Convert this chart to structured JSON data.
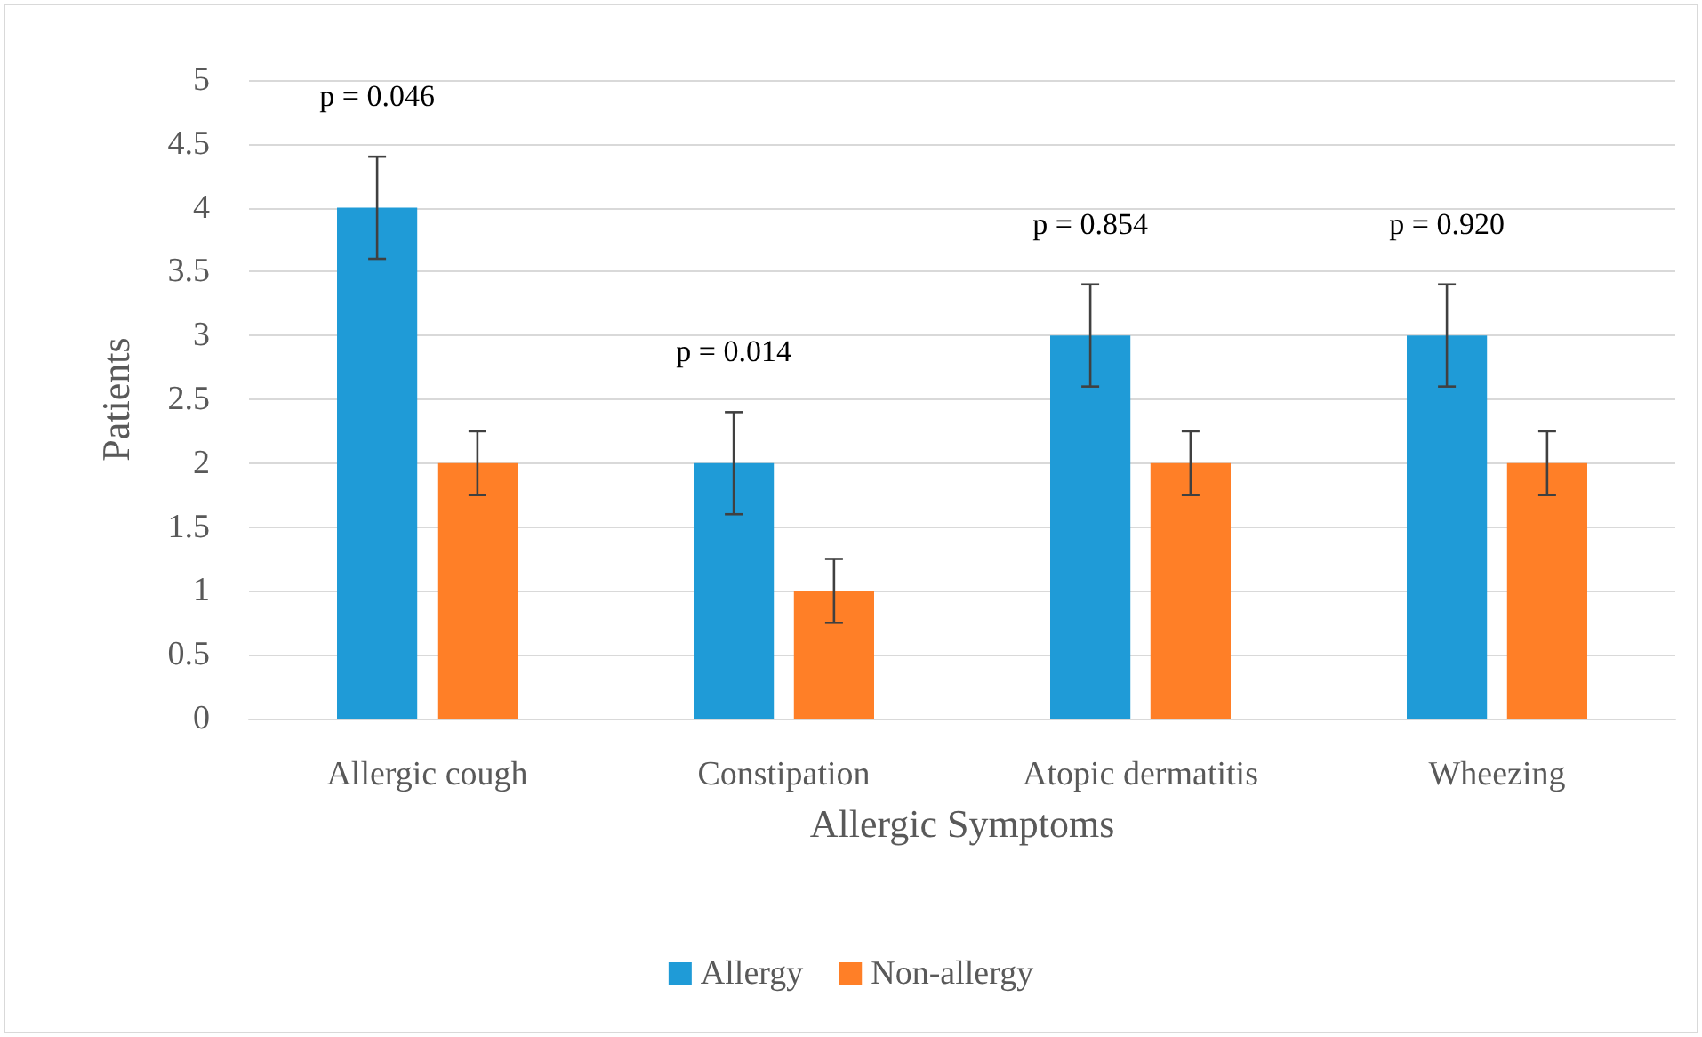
{
  "chart_data": {
    "type": "bar",
    "xlabel": "Allergic Symptoms",
    "ylabel": "Patients",
    "categories": [
      "Allergic cough",
      "Constipation",
      "Atopic dermatitis",
      "Wheezing"
    ],
    "series": [
      {
        "name": "Allergy",
        "color": "#1f9bd7",
        "values": [
          4,
          2,
          3,
          3
        ],
        "errors": [
          0.4,
          0.4,
          0.4,
          0.4
        ]
      },
      {
        "name": "Non-allergy",
        "color": "#ff7f27",
        "values": [
          2,
          1,
          2,
          2
        ],
        "errors": [
          0.25,
          0.25,
          0.25,
          0.25
        ]
      }
    ],
    "ylim": [
      0,
      5
    ],
    "yticks": [
      0,
      0.5,
      1,
      1.5,
      2,
      2.5,
      3,
      3.5,
      4,
      4.5,
      5
    ],
    "grid": "y",
    "legend": "bottom",
    "annotations": [
      "p = 0.046",
      "p = 0.014",
      "p = 0.854",
      "p = 0.920"
    ]
  }
}
